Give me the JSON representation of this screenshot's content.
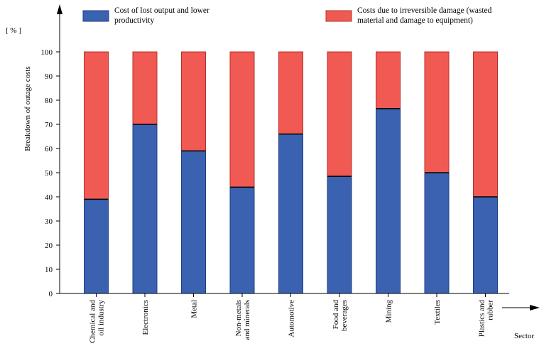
{
  "chart_data": {
    "type": "bar",
    "stacked": true,
    "categories": [
      [
        "Chemical and",
        "oil industry"
      ],
      [
        "Electronics"
      ],
      [
        "Metal"
      ],
      [
        "Non-metals",
        "and minerals"
      ],
      [
        "Automotive"
      ],
      [
        "Food and",
        "beverages"
      ],
      [
        "Mining"
      ],
      [
        "Textiles"
      ],
      [
        "Plastics and",
        "rubber"
      ]
    ],
    "series": [
      {
        "name": [
          "Cost of lost output and lower",
          "productivity"
        ],
        "color": "#3a62b0",
        "values": [
          39,
          70,
          59,
          44,
          66,
          48.5,
          76.5,
          50,
          40
        ]
      },
      {
        "name": [
          "Costs due to irreversible damage (wasted",
          "material and damage to equipment)"
        ],
        "color": "#f05a52",
        "values": [
          61,
          30,
          41,
          56,
          34,
          51.5,
          23.5,
          50,
          60
        ]
      }
    ],
    "ylabel": "Breakdown of outage costs",
    "yunit": "[ % ]",
    "xlabel": "Sector",
    "ylim": [
      0,
      100
    ],
    "yticks": [
      0,
      10,
      20,
      30,
      40,
      50,
      60,
      70,
      80,
      90,
      100
    ],
    "grid": false,
    "legend": "top"
  }
}
